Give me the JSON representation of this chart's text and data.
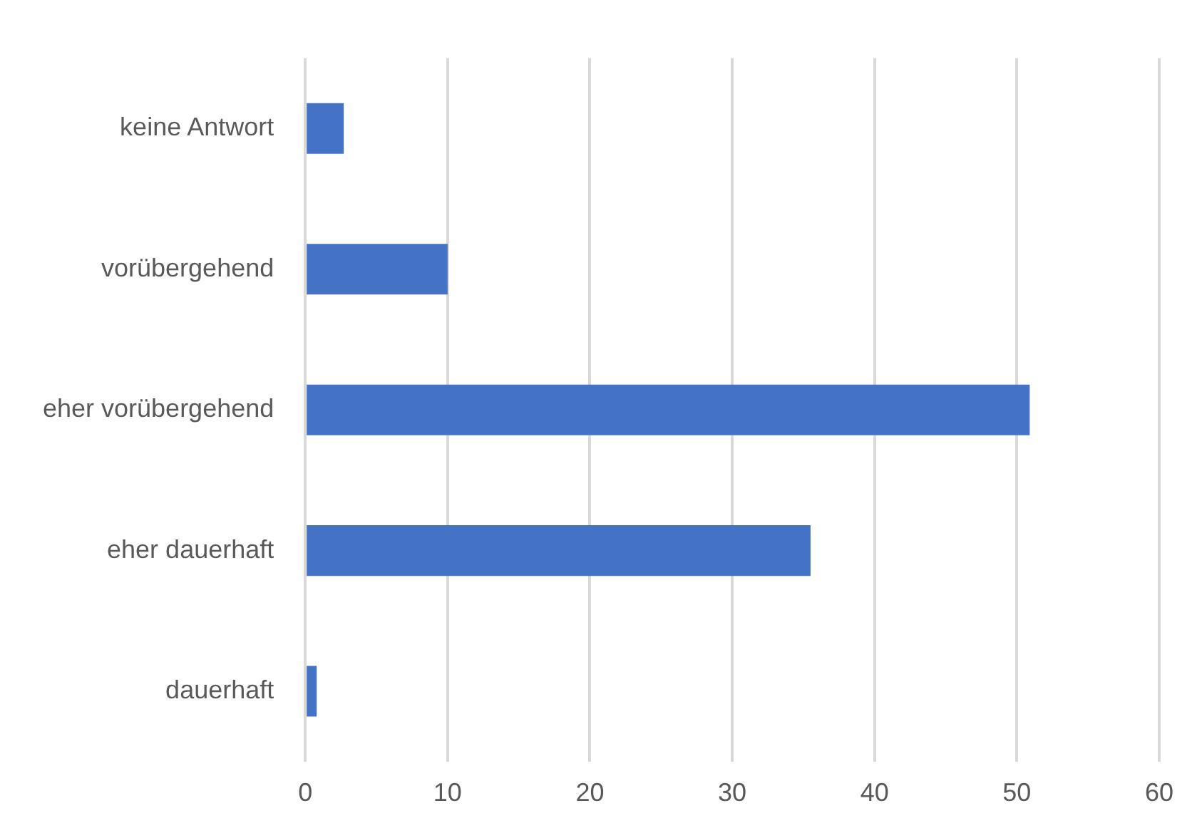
{
  "chart_data": {
    "type": "bar",
    "orientation": "horizontal",
    "categories": [
      "keine Antwort",
      "vorübergehend",
      "eher vorübergehend",
      "eher dauerhaft",
      "dauerhaft"
    ],
    "values": [
      2.7,
      10,
      50.9,
      35.5,
      0.8
    ],
    "color": "#4472c4",
    "xlim": [
      0,
      60
    ],
    "xticks": [
      0,
      10,
      20,
      30,
      40,
      50,
      60
    ],
    "grid": "x",
    "legend": false
  }
}
